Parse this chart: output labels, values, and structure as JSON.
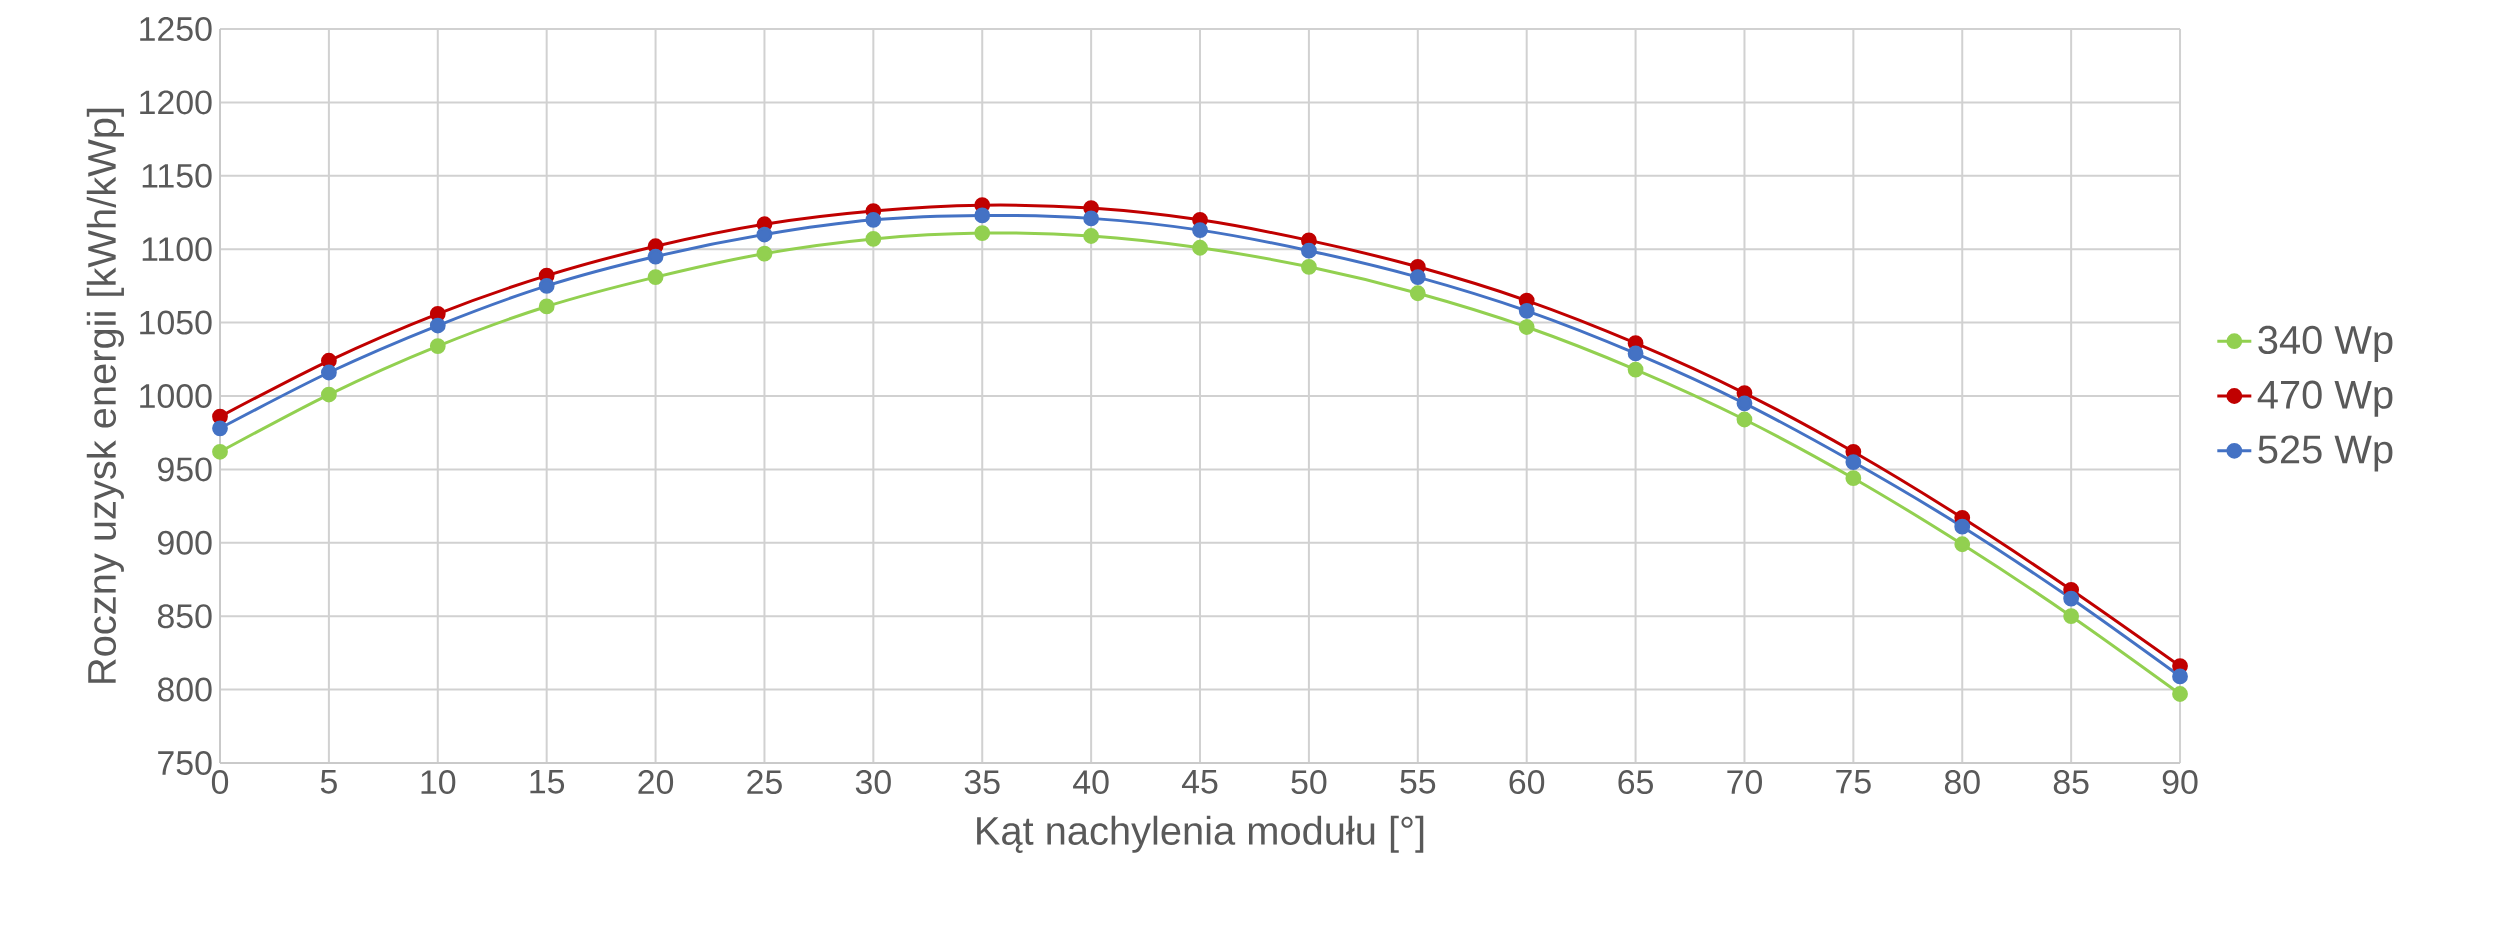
{
  "chart_data": {
    "type": "line",
    "xlabel": "Kąt nachylenia modułu [°]",
    "ylabel": "Roczny uzysk energii [kWh/kWp]",
    "x": [
      0,
      5,
      10,
      15,
      20,
      25,
      30,
      35,
      40,
      45,
      50,
      55,
      60,
      65,
      70,
      75,
      80,
      85,
      90
    ],
    "series": [
      {
        "name": "340 Wp",
        "color": "#92d050",
        "values": [
          962,
          1001,
          1034,
          1061,
          1081,
          1097,
          1107,
          1111,
          1109,
          1101,
          1088,
          1070,
          1047,
          1018,
          984,
          944,
          899,
          850,
          797
        ]
      },
      {
        "name": "470 Wp",
        "color": "#c00000",
        "values": [
          986,
          1024,
          1056,
          1082,
          1102,
          1117,
          1126,
          1130,
          1128,
          1120,
          1106,
          1088,
          1065,
          1036,
          1002,
          962,
          917,
          868,
          816
        ]
      },
      {
        "name": "525 Wp",
        "color": "#4472c4",
        "values": [
          978,
          1016,
          1048,
          1075,
          1095,
          1110,
          1120,
          1123,
          1121,
          1113,
          1099,
          1081,
          1058,
          1029,
          995,
          955,
          911,
          862,
          809
        ]
      }
    ],
    "xlim": [
      0,
      90
    ],
    "xticks": [
      0,
      5,
      10,
      15,
      20,
      25,
      30,
      35,
      40,
      45,
      50,
      55,
      60,
      65,
      70,
      75,
      80,
      85,
      90
    ],
    "ylim": [
      750,
      1250
    ],
    "yticks": [
      750,
      800,
      850,
      900,
      950,
      1000,
      1050,
      1100,
      1150,
      1200,
      1250
    ],
    "grid": true,
    "legend": "right",
    "marker": "circle",
    "line_style": "solid"
  }
}
